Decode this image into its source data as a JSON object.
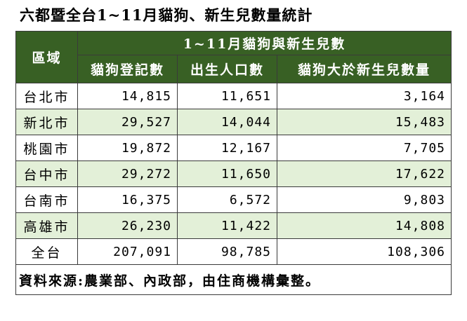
{
  "title": "六都暨全台1~11月貓狗、新生兒數量統計",
  "table": {
    "region_header": "區域",
    "group_header": "1~11月貓狗與新生兒數",
    "columns": [
      "貓狗登記數",
      "出生人口數",
      "貓狗大於新生兒數量"
    ],
    "rows": [
      {
        "region": "台北市",
        "values": [
          "14,815",
          "11,651",
          "3,164"
        ]
      },
      {
        "region": "新北市",
        "values": [
          "29,527",
          "14,044",
          "15,483"
        ]
      },
      {
        "region": "桃園市",
        "values": [
          "19,872",
          "12,167",
          "7,705"
        ]
      },
      {
        "region": "台中市",
        "values": [
          "29,272",
          "11,650",
          "17,622"
        ]
      },
      {
        "region": "台南市",
        "values": [
          "16,375",
          "6,572",
          "9,803"
        ]
      },
      {
        "region": "高雄市",
        "values": [
          "26,230",
          "11,422",
          "14,808"
        ]
      },
      {
        "region": "全台",
        "values": [
          "207,091",
          "98,785",
          "108,306"
        ]
      }
    ],
    "source": "資料來源:農業部、內政部，由住商機構彙整。"
  },
  "colors": {
    "header_bg": "#386024",
    "header_text": "#ffffff",
    "alt_row_bg": "#e3f0d8"
  }
}
